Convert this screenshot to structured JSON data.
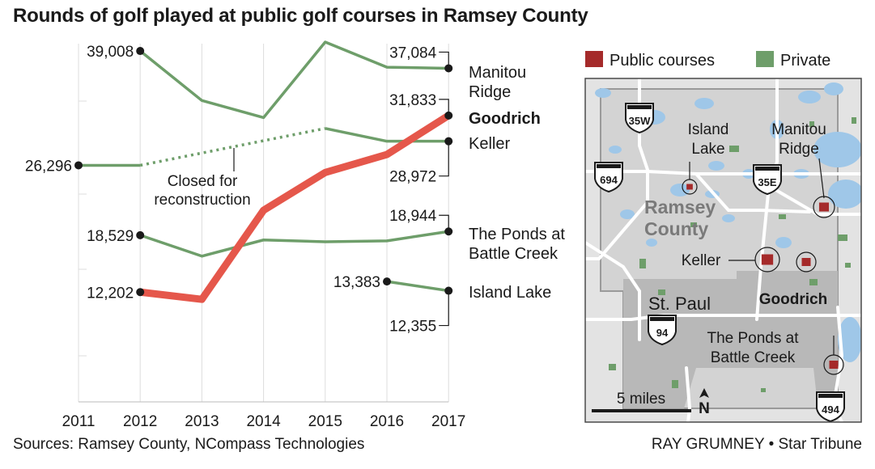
{
  "title": "Rounds of golf played at public golf courses in Ramsey County",
  "sources": "Sources: Ramsey County, NCompass Technologies",
  "credit": "RAY GRUMNEY • Star Tribune",
  "colors": {
    "public": "#e5574b",
    "private": "#6e9e6a",
    "map_public": "#a52a2a",
    "map_private": "#6e9e6a"
  },
  "chart_data": {
    "type": "line",
    "title": "Rounds of golf played at public golf courses in Ramsey County",
    "x": [
      2011,
      2012,
      2013,
      2014,
      2015,
      2016,
      2017
    ],
    "x_tick_labels": [
      "2011",
      "2012",
      "2013",
      "2014",
      "2015",
      "2016",
      "2017"
    ],
    "ylim": [
      0,
      40000
    ],
    "grid": "vertical",
    "series": [
      {
        "name": "Manitou Ridge",
        "type": "private",
        "highlight": false,
        "values": [
          null,
          39008,
          33500,
          31600,
          40000,
          37200,
          37084
        ],
        "labels": [
          {
            "x": 2012,
            "text": "39,008",
            "side": "left"
          },
          {
            "x": 2017,
            "text": "37,084",
            "side": "above-left"
          }
        ]
      },
      {
        "name": "Goodrich",
        "type": "public",
        "highlight": true,
        "values": [
          null,
          12202,
          11400,
          21300,
          25500,
          27500,
          31833
        ],
        "labels": [
          {
            "x": 2012,
            "text": "12,202",
            "side": "left"
          },
          {
            "x": 2017,
            "text": "31,833",
            "side": "above-left"
          }
        ]
      },
      {
        "name": "Keller",
        "type": "private",
        "highlight": false,
        "values": [
          26296,
          26296,
          null,
          null,
          30400,
          28972,
          28972
        ],
        "closed": {
          "from": 2012,
          "to": 2015,
          "label": [
            "Closed for",
            "reconstruction"
          ]
        },
        "labels": [
          {
            "x": 2011,
            "text": "26,296",
            "side": "left"
          },
          {
            "x": 2017,
            "text": "28,972",
            "side": "below-left"
          }
        ]
      },
      {
        "name": "The Ponds at Battle Creek",
        "type": "private",
        "highlight": false,
        "values": [
          null,
          18529,
          16200,
          18000,
          17800,
          17900,
          18944
        ],
        "labels": [
          {
            "x": 2012,
            "text": "18,529",
            "side": "left"
          },
          {
            "x": 2017,
            "text": "18,944",
            "side": "above-left"
          }
        ]
      },
      {
        "name": "Island Lake",
        "type": "private",
        "highlight": false,
        "values": [
          null,
          null,
          null,
          null,
          null,
          13383,
          12355
        ],
        "labels": [
          {
            "x": 2016,
            "text": "13,383",
            "side": "left"
          },
          {
            "x": 2017,
            "text": "12,355",
            "side": "below-left"
          }
        ]
      }
    ],
    "series_labels": [
      {
        "series": "Manitou Ridge",
        "lines": [
          "Manitou",
          "Ridge"
        ],
        "bold": false
      },
      {
        "series": "Goodrich",
        "lines": [
          "Goodrich"
        ],
        "bold": true
      },
      {
        "series": "Keller",
        "lines": [
          "Keller"
        ],
        "bold": false
      },
      {
        "series": "The Ponds at Battle Creek",
        "lines": [
          "The Ponds at",
          "Battle Creek"
        ],
        "bold": false
      },
      {
        "series": "Island Lake",
        "lines": [
          "Island Lake"
        ],
        "bold": false
      }
    ]
  },
  "map": {
    "legend": [
      {
        "label": "Public courses",
        "kind": "public"
      },
      {
        "label": "Private",
        "kind": "private"
      }
    ],
    "county_label": [
      "Ramsey",
      "County"
    ],
    "city_label": "St. Paul",
    "highways": [
      "35W",
      "694",
      "35E",
      "94",
      "494"
    ],
    "course_labels": [
      {
        "name": "island-lake",
        "lines": [
          "Island",
          "Lake"
        ],
        "bold": false
      },
      {
        "name": "manitou-ridge",
        "lines": [
          "Manitou",
          "Ridge"
        ],
        "bold": false
      },
      {
        "name": "keller",
        "lines": [
          "Keller"
        ],
        "bold": false
      },
      {
        "name": "goodrich",
        "lines": [
          "Goodrich"
        ],
        "bold": true
      },
      {
        "name": "ponds",
        "lines": [
          "The Ponds at",
          "Battle Creek"
        ],
        "bold": false
      }
    ],
    "scale_label": "5 miles",
    "north_label": "N"
  }
}
